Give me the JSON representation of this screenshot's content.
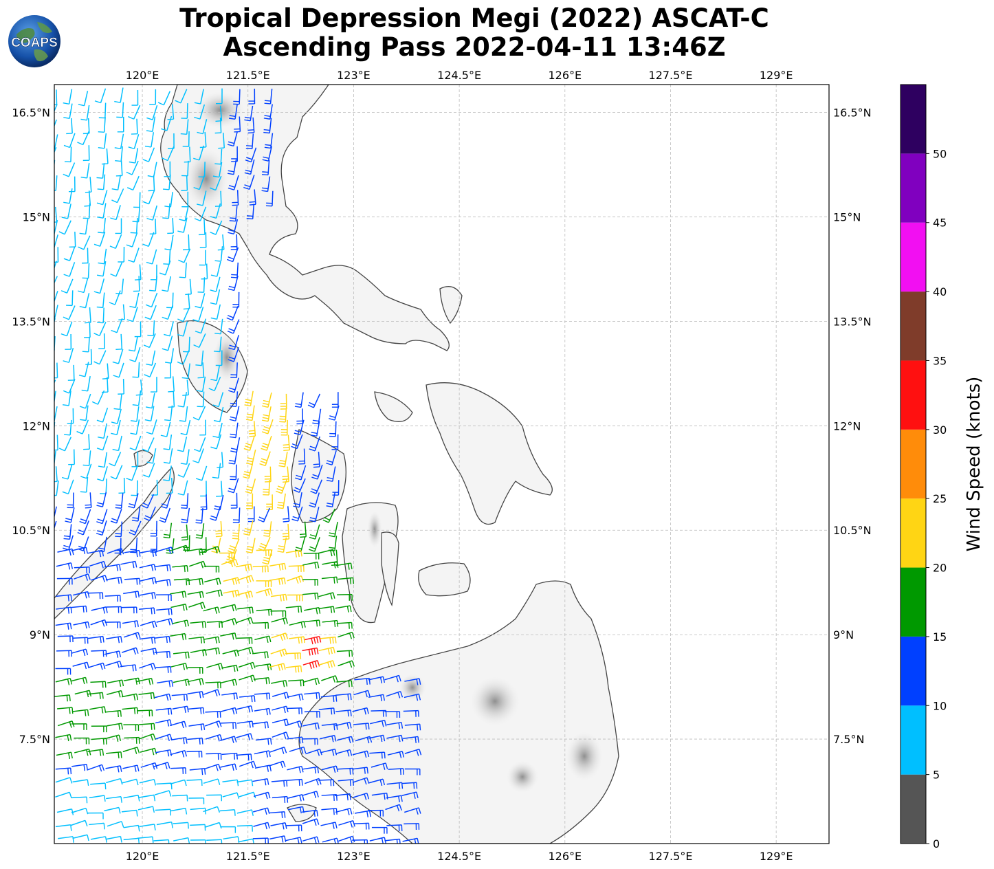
{
  "title": {
    "line1": "Tropical Depression Megi (2022) ASCAT-C",
    "line2": "Ascending Pass 2022-04-11 13:46Z"
  },
  "logo": {
    "text": "COAPS",
    "icon": "globe-logo-icon"
  },
  "map": {
    "projection": "plate-carree",
    "lon_range": [
      118.75,
      129.75
    ],
    "lat_range": [
      6.0,
      16.9
    ],
    "gridlines": true,
    "lon_ticks": [
      "120°E",
      "121.5°E",
      "123°E",
      "124.5°E",
      "126°E",
      "127.5°E",
      "129°E"
    ],
    "lon_tick_values": [
      120,
      121.5,
      123,
      124.5,
      126,
      127.5,
      129
    ],
    "lat_ticks": [
      "16.5°N",
      "15°N",
      "13.5°N",
      "12°N",
      "10.5°N",
      "9°N",
      "7.5°N"
    ],
    "lat_tick_values": [
      16.5,
      15,
      13.5,
      12,
      10.5,
      9,
      7.5
    ],
    "land_shading": "grayscale-terrain",
    "coastline_color": "#444444",
    "grid_color": "#bbbbbb"
  },
  "colorbar": {
    "label": "Wind Speed (knots)",
    "ticks": [
      "0",
      "5",
      "10",
      "15",
      "20",
      "25",
      "30",
      "35",
      "40",
      "45",
      "50"
    ],
    "range": [
      0,
      55
    ],
    "bins": [
      {
        "from": 0,
        "to": 5,
        "color": "#555555"
      },
      {
        "from": 5,
        "to": 10,
        "color": "#00bfff"
      },
      {
        "from": 10,
        "to": 15,
        "color": "#0040ff"
      },
      {
        "from": 15,
        "to": 20,
        "color": "#009900"
      },
      {
        "from": 20,
        "to": 25,
        "color": "#ffd514"
      },
      {
        "from": 25,
        "to": 30,
        "color": "#ff8c0a"
      },
      {
        "from": 30,
        "to": 35,
        "color": "#ff1010"
      },
      {
        "from": 35,
        "to": 40,
        "color": "#7f3c2a"
      },
      {
        "from": 40,
        "to": 45,
        "color": "#f20ff2"
      },
      {
        "from": 45,
        "to": 50,
        "color": "#8000bf"
      },
      {
        "from": 50,
        "to": 55,
        "color": "#2e0060"
      }
    ]
  }
}
